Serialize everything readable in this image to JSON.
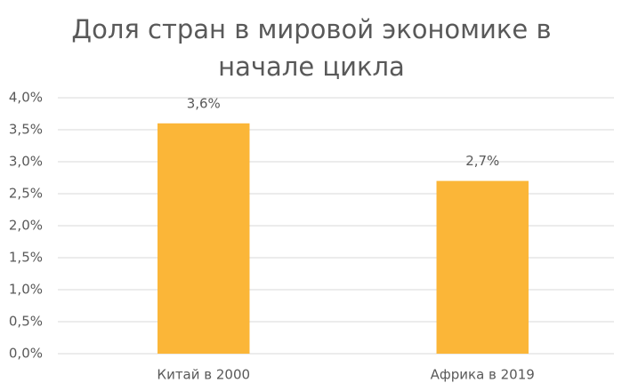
{
  "chart_data": {
    "type": "bar",
    "title": "Доля стран в мировой экономике в начале цикла",
    "categories": [
      "Китай в 2000",
      "Африка в 2019"
    ],
    "values": [
      3.6,
      2.7
    ],
    "value_labels": [
      "3,6%",
      "2,7%"
    ],
    "color": "#fbb638",
    "ylim": [
      0,
      4
    ],
    "yticks": [
      {
        "value": 0,
        "label": "0,0%"
      },
      {
        "value": 0.5,
        "label": "0,5%"
      },
      {
        "value": 1,
        "label": "1,0%"
      },
      {
        "value": 1.5,
        "label": "1,5%"
      },
      {
        "value": 2,
        "label": "2,0%"
      },
      {
        "value": 2.5,
        "label": "2,5%"
      },
      {
        "value": 3,
        "label": "3,0%"
      },
      {
        "value": 3.5,
        "label": "3,5%"
      },
      {
        "value": 4,
        "label": "4,0%"
      }
    ],
    "grid": true
  }
}
